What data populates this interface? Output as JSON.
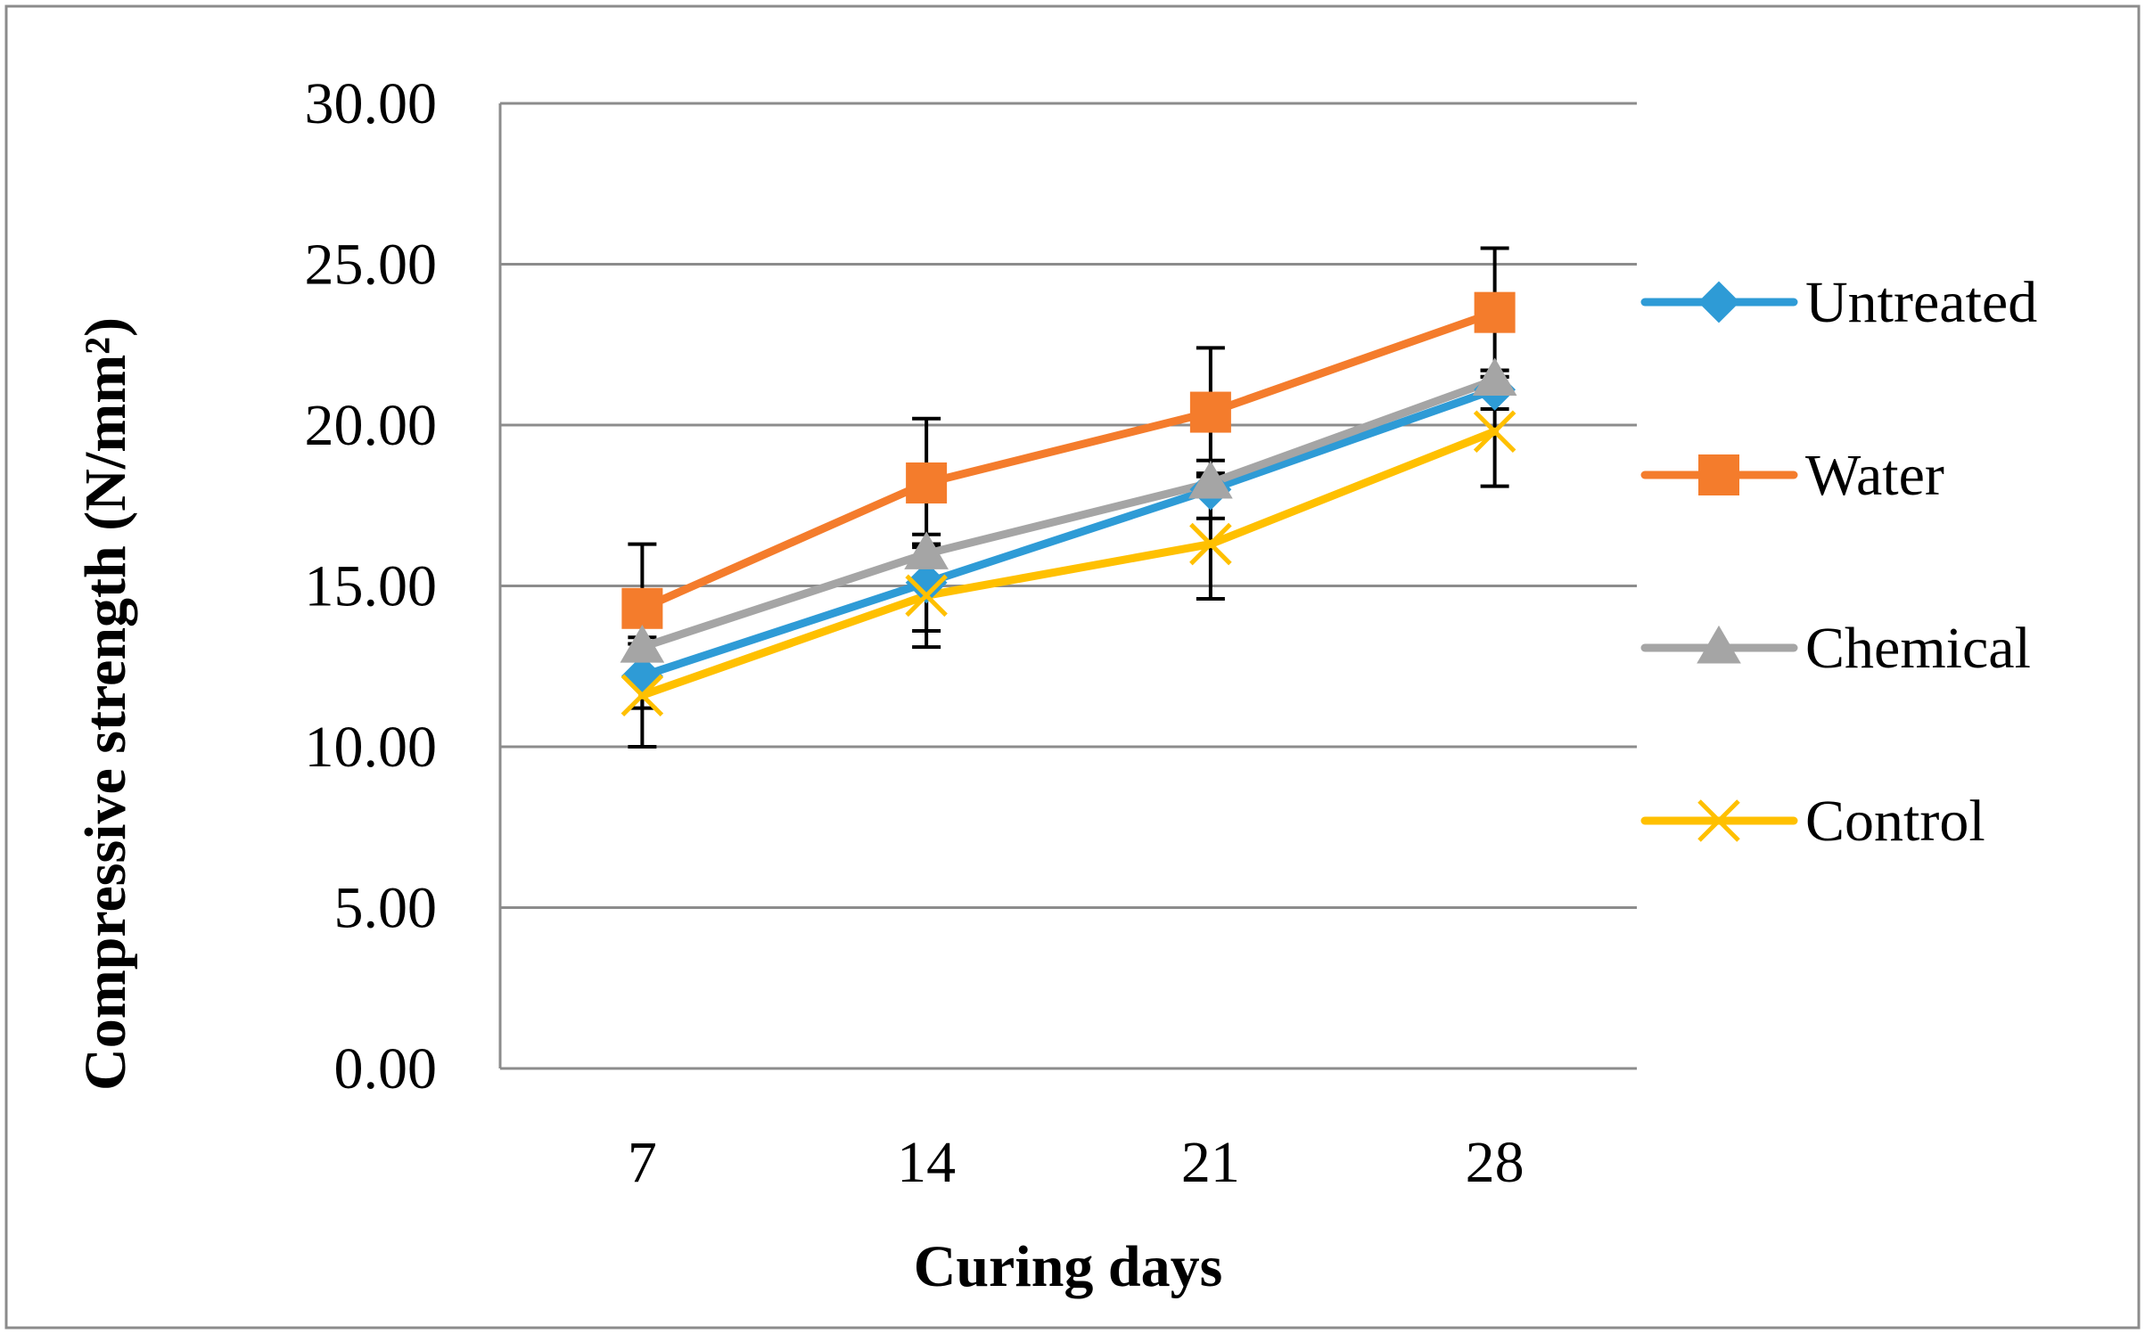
{
  "chart_data": {
    "type": "line",
    "title": "",
    "xlabel": "Curing days",
    "ylabel": "Compressive strength (N/mm²)",
    "categories": [
      "7",
      "14",
      "21",
      "28"
    ],
    "ylim": [
      0,
      30
    ],
    "ytick_step": 5,
    "ytick_labels": [
      "0.00",
      "5.00",
      "10.00",
      "15.00",
      "20.00",
      "25.00",
      "30.00"
    ],
    "grid": "horizontal",
    "legend_position": "right",
    "series": [
      {
        "name": "Untreated",
        "values": [
          12.2,
          15.1,
          18.0,
          21.1
        ],
        "error": [
          1.0,
          1.5,
          0.9,
          0.6
        ],
        "color": "#2E9BD6",
        "marker": "diamond"
      },
      {
        "name": "Water",
        "values": [
          14.3,
          18.2,
          20.4,
          23.5
        ],
        "error": [
          2.0,
          2.0,
          2.0,
          2.0
        ],
        "color": "#F47C2C",
        "marker": "square"
      },
      {
        "name": "Chemical",
        "values": [
          13.1,
          16.0,
          18.2,
          21.4
        ],
        "error": [
          0.3,
          0.3,
          0.3,
          0.3
        ],
        "color": "#A5A5A5",
        "marker": "triangle"
      },
      {
        "name": "Control",
        "values": [
          11.6,
          14.7,
          16.3,
          19.8
        ],
        "error": [
          1.6,
          1.6,
          1.7,
          1.7
        ],
        "color": "#FFC000",
        "marker": "x"
      }
    ]
  }
}
